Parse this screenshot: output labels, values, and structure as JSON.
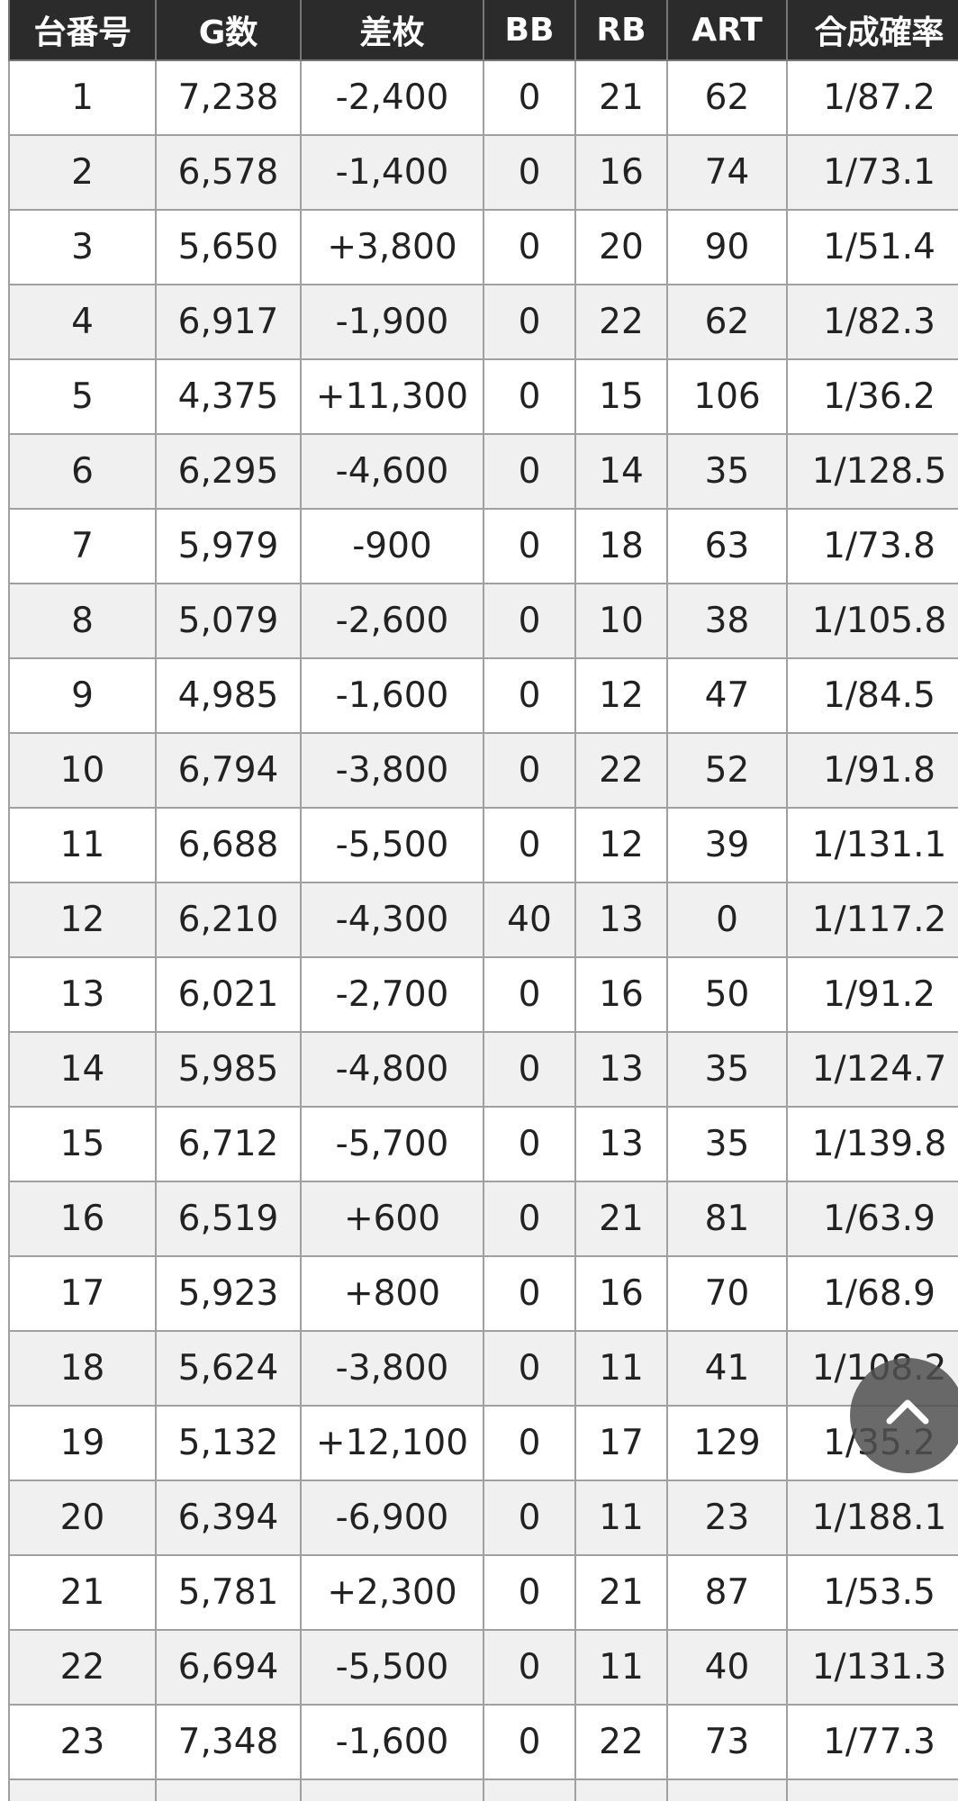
{
  "table": {
    "header": [
      "台番号",
      "G数",
      "差枚",
      "BB",
      "RB",
      "ART",
      "合成確率"
    ],
    "rows": [
      [
        "1",
        "7,238",
        "-2,400",
        "0",
        "21",
        "62",
        "1/87.2"
      ],
      [
        "2",
        "6,578",
        "-1,400",
        "0",
        "16",
        "74",
        "1/73.1"
      ],
      [
        "3",
        "5,650",
        "+3,800",
        "0",
        "20",
        "90",
        "1/51.4"
      ],
      [
        "4",
        "6,917",
        "-1,900",
        "0",
        "22",
        "62",
        "1/82.3"
      ],
      [
        "5",
        "4,375",
        "+11,300",
        "0",
        "15",
        "106",
        "1/36.2"
      ],
      [
        "6",
        "6,295",
        "-4,600",
        "0",
        "14",
        "35",
        "1/128.5"
      ],
      [
        "7",
        "5,979",
        "-900",
        "0",
        "18",
        "63",
        "1/73.8"
      ],
      [
        "8",
        "5,079",
        "-2,600",
        "0",
        "10",
        "38",
        "1/105.8"
      ],
      [
        "9",
        "4,985",
        "-1,600",
        "0",
        "12",
        "47",
        "1/84.5"
      ],
      [
        "10",
        "6,794",
        "-3,800",
        "0",
        "22",
        "52",
        "1/91.8"
      ],
      [
        "11",
        "6,688",
        "-5,500",
        "0",
        "12",
        "39",
        "1/131.1"
      ],
      [
        "12",
        "6,210",
        "-4,300",
        "40",
        "13",
        "0",
        "1/117.2"
      ],
      [
        "13",
        "6,021",
        "-2,700",
        "0",
        "16",
        "50",
        "1/91.2"
      ],
      [
        "14",
        "5,985",
        "-4,800",
        "0",
        "13",
        "35",
        "1/124.7"
      ],
      [
        "15",
        "6,712",
        "-5,700",
        "0",
        "13",
        "35",
        "1/139.8"
      ],
      [
        "16",
        "6,519",
        "+600",
        "0",
        "21",
        "81",
        "1/63.9"
      ],
      [
        "17",
        "5,923",
        "+800",
        "0",
        "16",
        "70",
        "1/68.9"
      ],
      [
        "18",
        "5,624",
        "-3,800",
        "0",
        "11",
        "41",
        "1/108.2"
      ],
      [
        "19",
        "5,132",
        "+12,100",
        "0",
        "17",
        "129",
        "1/35.2"
      ],
      [
        "20",
        "6,394",
        "-6,900",
        "0",
        "11",
        "23",
        "1/188.1"
      ],
      [
        "21",
        "5,781",
        "+2,300",
        "0",
        "21",
        "87",
        "1/53.5"
      ],
      [
        "22",
        "6,694",
        "-5,500",
        "0",
        "11",
        "40",
        "1/131.3"
      ],
      [
        "23",
        "7,348",
        "-1,600",
        "0",
        "22",
        "73",
        "1/77.3"
      ]
    ]
  }
}
